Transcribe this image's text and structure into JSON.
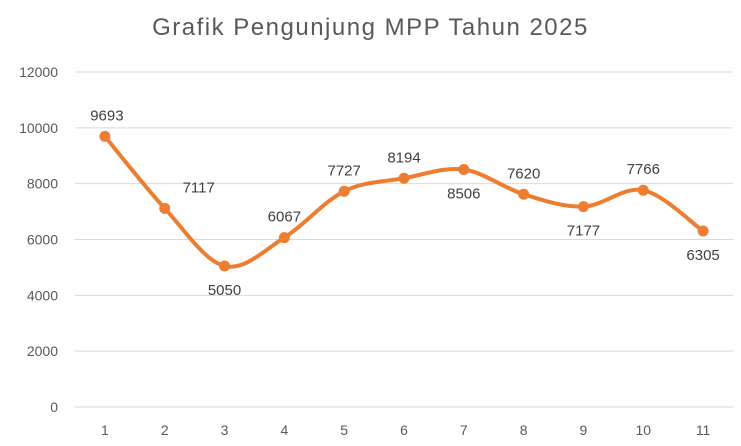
{
  "chart_data": {
    "type": "line",
    "title": "Grafik Pengunjung  MPP Tahun 2025",
    "categories": [
      "1",
      "2",
      "3",
      "4",
      "5",
      "6",
      "7",
      "8",
      "9",
      "10",
      "11"
    ],
    "series": [
      {
        "values": [
          9693,
          7117,
          5050,
          6067,
          7727,
          8194,
          8506,
          7620,
          7177,
          7766,
          6305
        ]
      }
    ],
    "yticks": [
      "0",
      "2000",
      "4000",
      "6000",
      "8000",
      "10000",
      "12000"
    ],
    "ylim": [
      0,
      12000
    ],
    "xlabel": "",
    "ylabel": "",
    "grid": true,
    "smooth": true,
    "legend": "none",
    "line_color": "#ED7D31"
  }
}
